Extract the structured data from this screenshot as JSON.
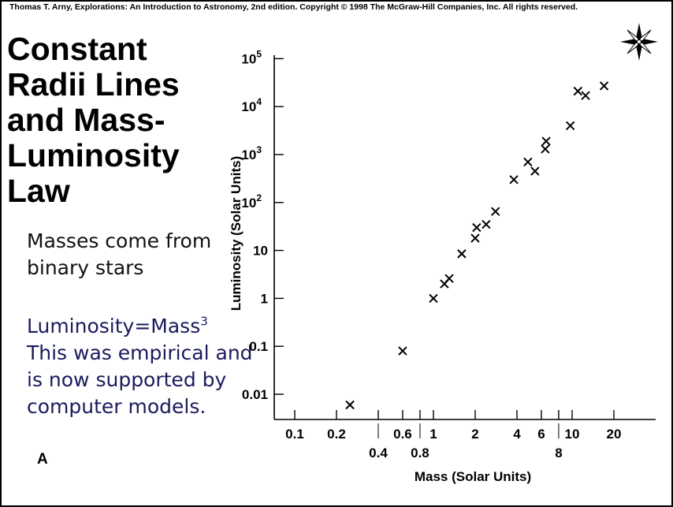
{
  "header": {
    "copyright": "Thomas T. Arny, Explorations: An Introduction to Astronomy, 2nd edition. Copyright © 1998 The McGraw-Hill Companies, Inc. All rights reserved."
  },
  "slide": {
    "title": "Constant Radii Lines and Mass-Luminosity Law",
    "note1": "Masses come from binary stars",
    "note2_line1": "Luminosity=Mass",
    "note2_sup": "3",
    "note2_rest": "This was empirical and is now supported by computer models.",
    "panel_label": "A",
    "colors": {
      "note2": "#1a1a5e",
      "text": "#000000"
    },
    "compass_icon": "compass-rose-icon"
  },
  "chart_data": {
    "type": "scatter",
    "xlabel": "Mass (Solar Units)",
    "ylabel": "Luminosity (Solar Units)",
    "xscale": "log",
    "yscale": "log",
    "xlim": [
      0.1,
      30
    ],
    "ylim": [
      0.003,
      100000
    ],
    "x_ticks_upper": [
      "0.1",
      "0.2",
      "0.6",
      "1",
      "2",
      "4",
      "6",
      "10",
      "20"
    ],
    "x_ticks_lower": [
      "0.4",
      "0.8",
      "8"
    ],
    "y_ticks": [
      "0.01",
      "0.1",
      "1",
      "10",
      "10^2",
      "10^3",
      "10^4",
      "10^5"
    ],
    "marker": "x",
    "points": [
      {
        "x": 0.25,
        "y": 0.006
      },
      {
        "x": 0.6,
        "y": 0.08
      },
      {
        "x": 1.0,
        "y": 1.0
      },
      {
        "x": 1.2,
        "y": 2.0
      },
      {
        "x": 1.3,
        "y": 2.6
      },
      {
        "x": 1.6,
        "y": 8.5
      },
      {
        "x": 2.0,
        "y": 18
      },
      {
        "x": 2.05,
        "y": 30
      },
      {
        "x": 2.4,
        "y": 35
      },
      {
        "x": 2.8,
        "y": 65
      },
      {
        "x": 3.8,
        "y": 300
      },
      {
        "x": 4.8,
        "y": 700
      },
      {
        "x": 5.4,
        "y": 450
      },
      {
        "x": 6.4,
        "y": 1300
      },
      {
        "x": 6.5,
        "y": 1900
      },
      {
        "x": 9.7,
        "y": 4000
      },
      {
        "x": 11,
        "y": 21000
      },
      {
        "x": 12.5,
        "y": 17000
      },
      {
        "x": 17,
        "y": 27000
      }
    ]
  }
}
